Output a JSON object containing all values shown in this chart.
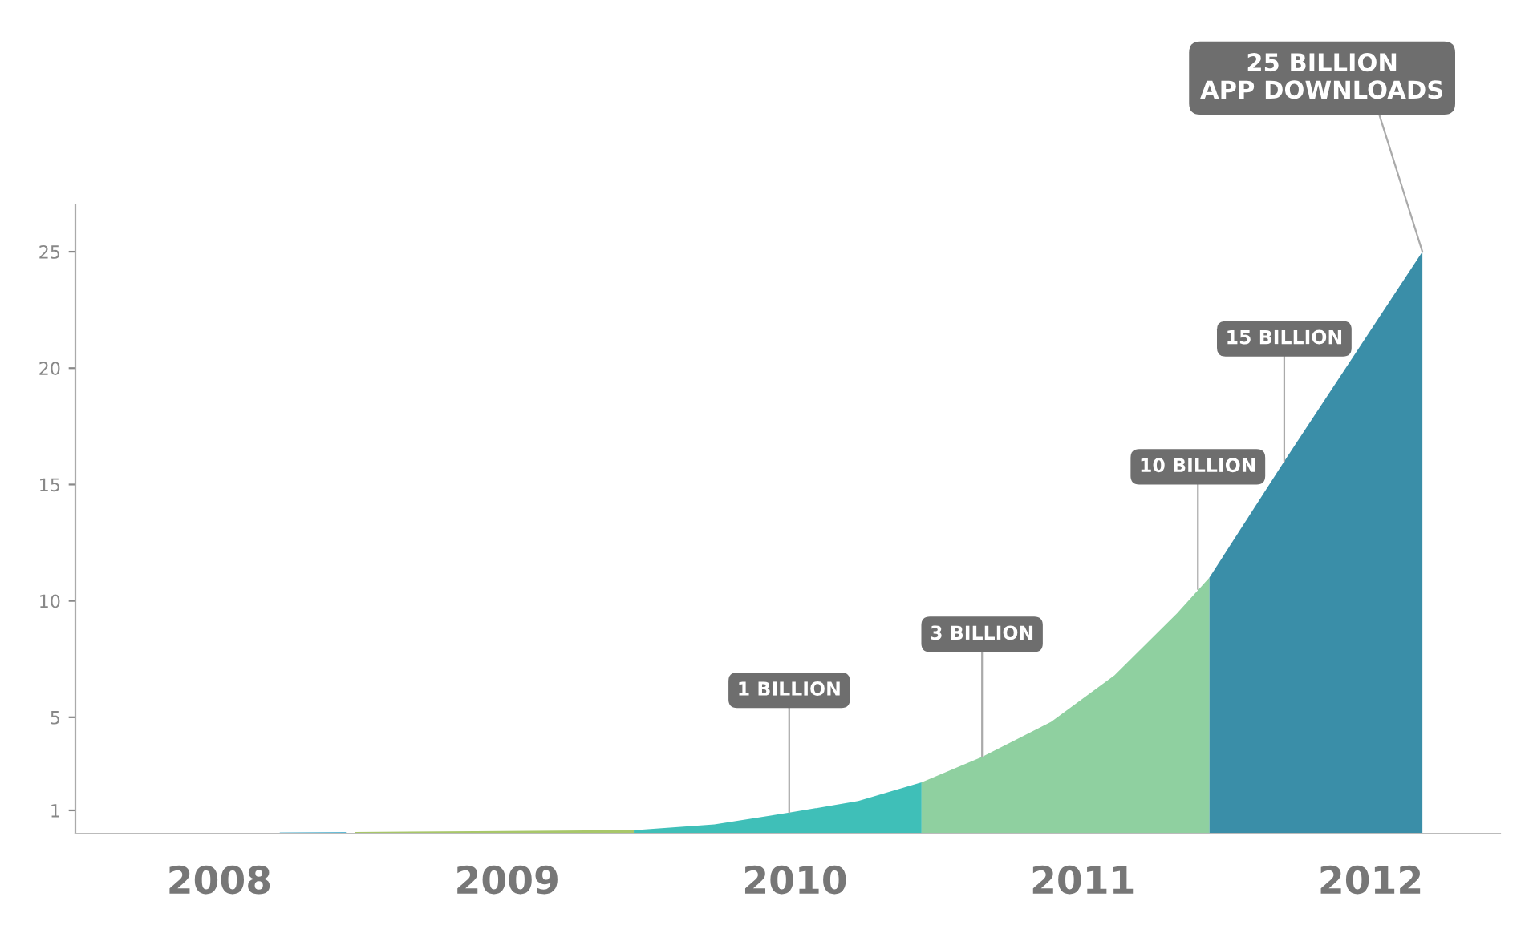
{
  "chart_data": {
    "type": "area",
    "xlim": [
      2007.5,
      2012.45
    ],
    "ylim": [
      0,
      27
    ],
    "yticks": [
      1,
      5,
      10,
      15,
      20,
      25
    ],
    "xticks": [
      2008,
      2009,
      2010,
      2011,
      2012
    ],
    "grid": false,
    "series": [
      {
        "color": "#5fb8d4",
        "x": [
          2008.21,
          2008.44
        ],
        "values": [
          0.05,
          0.07
        ]
      },
      {
        "color": "#a8c76a",
        "x": [
          2008.47,
          2008.89,
          2009.44
        ],
        "values": [
          0.07,
          0.1,
          0.15
        ]
      },
      {
        "color": "#3fbfb8",
        "x": [
          2009.44,
          2009.72,
          2009.98,
          2010.22,
          2010.44
        ],
        "values": [
          0.15,
          0.4,
          0.9,
          1.4,
          2.2
        ]
      },
      {
        "color": "#8fd0a0",
        "x": [
          2010.44,
          2010.65,
          2010.89,
          2011.11,
          2011.33,
          2011.44
        ],
        "values": [
          2.2,
          3.3,
          4.8,
          6.8,
          9.5,
          11
        ]
      },
      {
        "color": "#3a8ea8",
        "x": [
          2011.44,
          2011.7,
          2011.94,
          2012.18
        ],
        "values": [
          11,
          16,
          20.5,
          25
        ]
      }
    ],
    "annotations": [
      {
        "text": "1 BILLION",
        "x": 2009.98,
        "y": 0.9
      },
      {
        "text": "3 BILLION",
        "x": 2010.65,
        "y": 3.3
      },
      {
        "text": "10 BILLION",
        "x": 2011.4,
        "y": 10.5
      },
      {
        "text": "15 BILLION",
        "x": 2011.7,
        "y": 16
      },
      {
        "text": "25 BILLION\nAPP DOWNLOADS",
        "x": 2012.18,
        "y": 25
      }
    ]
  }
}
